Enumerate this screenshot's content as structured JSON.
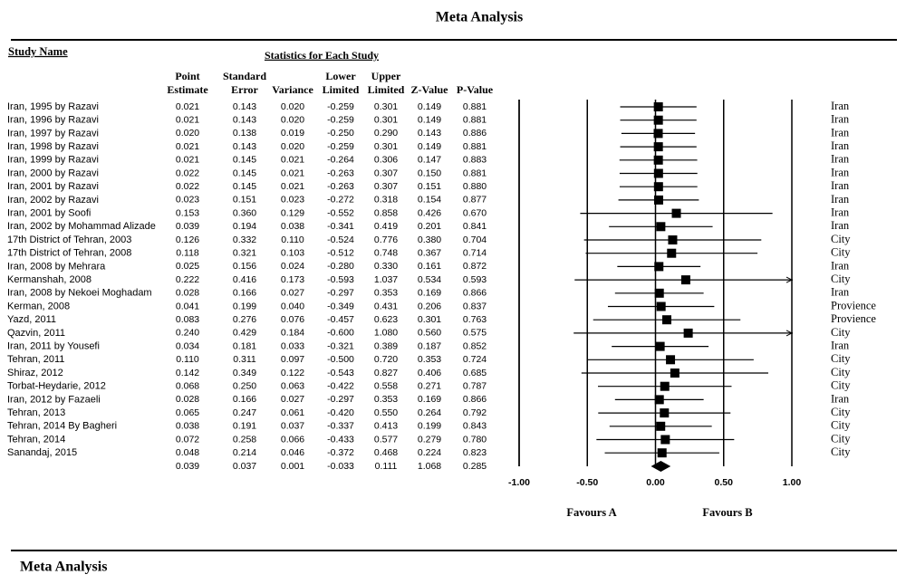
{
  "chart_data": {
    "type": "forest",
    "title": "Meta Analysis",
    "footer": "Meta Analysis",
    "study_header": "Study Name",
    "stats_header": "Statistics for Each Study",
    "categories": [
      "Iran, 1995 by Razavi",
      "Iran, 1996 by Razavi",
      "Iran, 1997 by Razavi",
      "Iran, 1998 by Razavi",
      "Iran, 1999 by Razavi",
      "Iran, 2000 by Razavi",
      "Iran, 2001 by Razavi",
      "Iran, 2002 by Razavi",
      "Iran, 2001 by Soofi",
      "Iran, 2002 by Mohammad Alizade",
      "17th District of Tehran, 2003",
      "17th District of Tehran, 2008",
      "Iran, 2008 by Mehrara",
      "Kermanshah, 2008",
      "Iran, 2008 by Nekoei Moghadam",
      "Kerman, 2008",
      "Yazd, 2011",
      "Qazvin, 2011",
      "Iran, 2011 by Yousefi",
      "Tehran, 2011",
      "Shiraz, 2012",
      "Torbat-Heydarie, 2012",
      "Iran, 2012 by Fazaeli",
      "Tehran, 2013",
      "Tehran, 2014 By Bagheri",
      "Tehran, 2014",
      "Sanandaj, 2015"
    ],
    "groups": [
      "Iran",
      "Iran",
      "Iran",
      "Iran",
      "Iran",
      "Iran",
      "Iran",
      "Iran",
      "Iran",
      "Iran",
      "City",
      "City",
      "Iran",
      "City",
      "Iran",
      "Provience",
      "Provience",
      "City",
      "Iran",
      "City",
      "City",
      "City",
      "Iran",
      "City",
      "City",
      "City",
      "City"
    ],
    "columns": [
      {
        "header": [
          "Point",
          "Estimate"
        ],
        "values": [
          0.021,
          0.021,
          0.02,
          0.021,
          0.021,
          0.022,
          0.022,
          0.023,
          0.153,
          0.039,
          0.126,
          0.118,
          0.025,
          0.222,
          0.028,
          0.041,
          0.083,
          0.24,
          0.034,
          0.11,
          0.142,
          0.068,
          0.028,
          0.065,
          0.038,
          0.072,
          0.048
        ],
        "value_labels": [
          "0.021",
          "0.021",
          "0.020",
          "0.021",
          "0.021",
          "0.022",
          "0.022",
          "0.023",
          "0.153",
          "0.039",
          "0.126",
          "0.118",
          "0.025",
          "0.222",
          "0.028",
          "0.041",
          "0.083",
          "0.240",
          "0.034",
          "0.110",
          "0.142",
          "0.068",
          "0.028",
          "0.065",
          "0.038",
          "0.072",
          "0.048"
        ],
        "summary": 0.039,
        "summary_label": "0.039"
      },
      {
        "header": [
          "Standard",
          "Error"
        ],
        "values": [
          0.143,
          0.143,
          0.138,
          0.143,
          0.145,
          0.145,
          0.145,
          0.151,
          0.36,
          0.194,
          0.332,
          0.321,
          0.156,
          0.416,
          0.166,
          0.199,
          0.276,
          0.429,
          0.181,
          0.311,
          0.349,
          0.25,
          0.166,
          0.247,
          0.191,
          0.258,
          0.214
        ],
        "value_labels": [
          "0.143",
          "0.143",
          "0.138",
          "0.143",
          "0.145",
          "0.145",
          "0.145",
          "0.151",
          "0.360",
          "0.194",
          "0.332",
          "0.321",
          "0.156",
          "0.416",
          "0.166",
          "0.199",
          "0.276",
          "0.429",
          "0.181",
          "0.311",
          "0.349",
          "0.250",
          "0.166",
          "0.247",
          "0.191",
          "0.258",
          "0.214"
        ],
        "summary": 0.037,
        "summary_label": "0.037"
      },
      {
        "header": [
          "",
          "Variance"
        ],
        "values": [
          0.02,
          0.02,
          0.019,
          0.02,
          0.021,
          0.021,
          0.021,
          0.023,
          0.129,
          0.038,
          0.11,
          0.103,
          0.024,
          0.173,
          0.027,
          0.04,
          0.076,
          0.184,
          0.033,
          0.097,
          0.122,
          0.063,
          0.027,
          0.061,
          0.037,
          0.066,
          0.046
        ],
        "value_labels": [
          "0.020",
          "0.020",
          "0.019",
          "0.020",
          "0.021",
          "0.021",
          "0.021",
          "0.023",
          "0.129",
          "0.038",
          "0.110",
          "0.103",
          "0.024",
          "0.173",
          "0.027",
          "0.040",
          "0.076",
          "0.184",
          "0.033",
          "0.097",
          "0.122",
          "0.063",
          "0.027",
          "0.061",
          "0.037",
          "0.066",
          "0.046"
        ],
        "summary": 0.001,
        "summary_label": "0.001"
      },
      {
        "header": [
          "Lower",
          "Limited"
        ],
        "values": [
          -0.259,
          -0.259,
          -0.25,
          -0.259,
          -0.264,
          -0.263,
          -0.263,
          -0.272,
          -0.552,
          -0.341,
          -0.524,
          -0.512,
          -0.28,
          -0.593,
          -0.297,
          -0.349,
          -0.457,
          -0.6,
          -0.321,
          -0.5,
          -0.543,
          -0.422,
          -0.297,
          -0.42,
          -0.337,
          -0.433,
          -0.372
        ],
        "value_labels": [
          "-0.259",
          "-0.259",
          "-0.250",
          "-0.259",
          "-0.264",
          "-0.263",
          "-0.263",
          "-0.272",
          "-0.552",
          "-0.341",
          "-0.524",
          "-0.512",
          "-0.280",
          "-0.593",
          "-0.297",
          "-0.349",
          "-0.457",
          "-0.600",
          "-0.321",
          "-0.500",
          "-0.543",
          "-0.422",
          "-0.297",
          "-0.420",
          "-0.337",
          "-0.433",
          "-0.372"
        ],
        "summary": -0.033,
        "summary_label": "-0.033"
      },
      {
        "header": [
          "Upper",
          "Limited"
        ],
        "values": [
          0.301,
          0.301,
          0.29,
          0.301,
          0.306,
          0.307,
          0.307,
          0.318,
          0.858,
          0.419,
          0.776,
          0.748,
          0.33,
          1.037,
          0.353,
          0.431,
          0.623,
          1.08,
          0.389,
          0.72,
          0.827,
          0.558,
          0.353,
          0.55,
          0.413,
          0.577,
          0.468
        ],
        "value_labels": [
          "0.301",
          "0.301",
          "0.290",
          "0.301",
          "0.306",
          "0.307",
          "0.307",
          "0.318",
          "0.858",
          "0.419",
          "0.776",
          "0.748",
          "0.330",
          "1.037",
          "0.353",
          "0.431",
          "0.623",
          "1.080",
          "0.389",
          "0.720",
          "0.827",
          "0.558",
          "0.353",
          "0.550",
          "0.413",
          "0.577",
          "0.468"
        ],
        "summary": 0.111,
        "summary_label": "0.111"
      },
      {
        "header": [
          "",
          "Z-Value"
        ],
        "values": [
          0.149,
          0.149,
          0.143,
          0.149,
          0.147,
          0.15,
          0.151,
          0.154,
          0.426,
          0.201,
          0.38,
          0.367,
          0.161,
          0.534,
          0.169,
          0.206,
          0.301,
          0.56,
          0.187,
          0.353,
          0.406,
          0.271,
          0.169,
          0.264,
          0.199,
          0.279,
          0.224
        ],
        "value_labels": [
          "0.149",
          "0.149",
          "0.143",
          "0.149",
          "0.147",
          "0.150",
          "0.151",
          "0.154",
          "0.426",
          "0.201",
          "0.380",
          "0.367",
          "0.161",
          "0.534",
          "0.169",
          "0.206",
          "0.301",
          "0.560",
          "0.187",
          "0.353",
          "0.406",
          "0.271",
          "0.169",
          "0.264",
          "0.199",
          "0.279",
          "0.224"
        ],
        "summary": 1.068,
        "summary_label": "1.068"
      },
      {
        "header": [
          "",
          "P-Value"
        ],
        "values": [
          0.881,
          0.881,
          0.886,
          0.881,
          0.883,
          0.881,
          0.88,
          0.877,
          0.67,
          0.841,
          0.704,
          0.714,
          0.872,
          0.593,
          0.866,
          0.837,
          0.763,
          0.575,
          0.852,
          0.724,
          0.685,
          0.787,
          0.866,
          0.792,
          0.843,
          0.78,
          0.823
        ],
        "value_labels": [
          "0.881",
          "0.881",
          "0.886",
          "0.881",
          "0.883",
          "0.881",
          "0.880",
          "0.877",
          "0.670",
          "0.841",
          "0.704",
          "0.714",
          "0.872",
          "0.593",
          "0.866",
          "0.837",
          "0.763",
          "0.575",
          "0.852",
          "0.724",
          "0.685",
          "0.787",
          "0.866",
          "0.792",
          "0.843",
          "0.780",
          "0.823"
        ],
        "summary": 0.285,
        "summary_label": "0.285"
      }
    ],
    "estimate_column": 0,
    "lower_column": 3,
    "upper_column": 4,
    "xlim": [
      -1,
      1
    ],
    "xticks": [
      {
        "value": -1,
        "label": "-1.00"
      },
      {
        "value": -0.5,
        "label": "-0.50"
      },
      {
        "value": 0,
        "label": "0.00"
      },
      {
        "value": 0.5,
        "label": "0.50"
      },
      {
        "value": 1,
        "label": "1.00"
      }
    ],
    "favours_left": "Favours A",
    "favours_right": "Favours B",
    "color": "#000000"
  }
}
